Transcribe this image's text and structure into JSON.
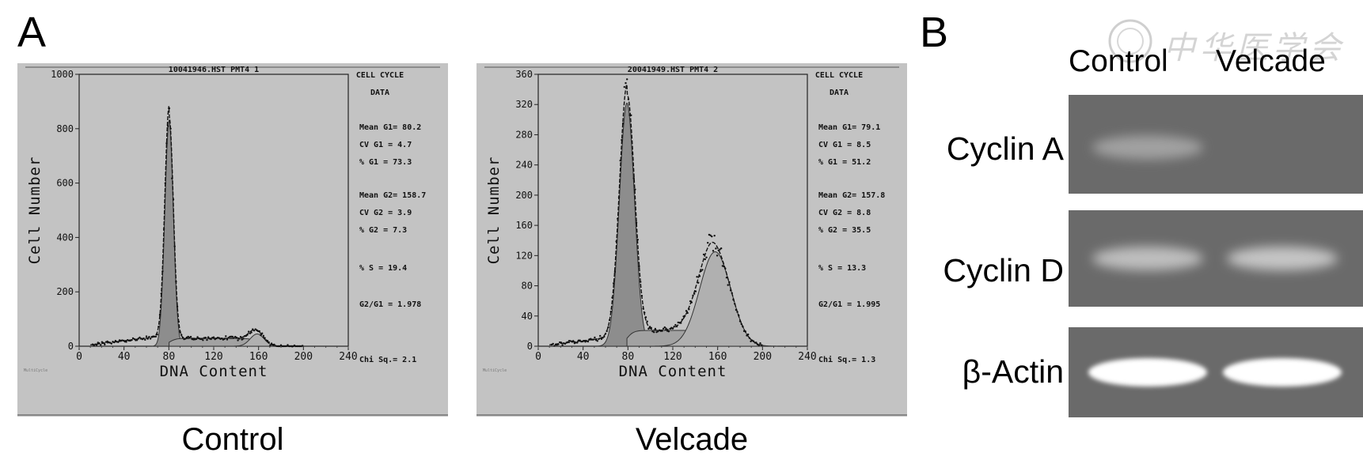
{
  "panels": {
    "a": "A",
    "b": "B"
  },
  "watermark": "中华医学会",
  "histograms": [
    {
      "title": "10041946.HST PMT4 1",
      "caption": "Control",
      "ylabel": "Cell Number",
      "xlabel": "DNA Content",
      "ylim": [
        0,
        1000
      ],
      "xlim": [
        0,
        240
      ],
      "yticks": [
        "0",
        "200",
        "400",
        "600",
        "800",
        "1000"
      ],
      "xticks": [
        "0",
        "40",
        "80",
        "120",
        "160",
        "200",
        "240"
      ],
      "side_header": [
        "CELL  CYCLE",
        "DATA"
      ],
      "stats": [
        {
          "label": "Mean G1=",
          "value": "80.2"
        },
        {
          "label": "CV G1  =",
          "value": "4.7"
        },
        {
          "label": "% G1   =",
          "value": "73.3"
        },
        {
          "label": "Mean G2=",
          "value": "158.7"
        },
        {
          "label": "CV G2  =",
          "value": "3.9"
        },
        {
          "label": "% G2   =",
          "value": "7.3"
        },
        {
          "label": "% S    =",
          "value": "19.4"
        },
        {
          "label": "G2/G1  =",
          "value": "1.978"
        },
        {
          "label": "Chi Sq.=",
          "value": "2.1"
        }
      ],
      "footer": "MultiCycle"
    },
    {
      "title": "20041949.HST PMT4 2",
      "caption": "Velcade",
      "ylabel": "Cell Number",
      "xlabel": "DNA Content",
      "ylim": [
        0,
        360
      ],
      "xlim": [
        0,
        240
      ],
      "yticks": [
        "0",
        "40",
        "80",
        "120",
        "160",
        "200",
        "240",
        "280",
        "320",
        "360"
      ],
      "xticks": [
        "0",
        "40",
        "80",
        "120",
        "160",
        "200",
        "240"
      ],
      "side_header": [
        "CELL  CYCLE",
        "DATA"
      ],
      "stats": [
        {
          "label": "Mean G1=",
          "value": "79.1"
        },
        {
          "label": "CV G1  =",
          "value": "8.5"
        },
        {
          "label": "% G1   =",
          "value": "51.2"
        },
        {
          "label": "Mean G2=",
          "value": "157.8"
        },
        {
          "label": "CV G2  =",
          "value": "8.8"
        },
        {
          "label": "% G2   =",
          "value": "35.5"
        },
        {
          "label": "% S    =",
          "value": "13.3"
        },
        {
          "label": "G2/G1  =",
          "value": "1.995"
        },
        {
          "label": "Chi Sq.=",
          "value": "1.3"
        }
      ],
      "footer": "MultiCycle"
    }
  ],
  "blot": {
    "columns": [
      "Control",
      "Velcade"
    ],
    "rows": [
      {
        "label": "Cyclin A",
        "bands": [
          0.35,
          0
        ]
      },
      {
        "label": "Cyclin D",
        "bands": [
          0.55,
          0.6
        ]
      },
      {
        "label": "β-Actin",
        "bands": [
          1,
          1
        ]
      }
    ]
  },
  "chart_data": [
    {
      "type": "area",
      "title": "10041946.HST PMT4 1",
      "xlabel": "DNA Content",
      "ylabel": "Cell Number",
      "xlim": [
        0,
        240
      ],
      "ylim": [
        0,
        1000
      ],
      "series": [
        {
          "name": "G1",
          "mean": 80.2,
          "cv": 4.7,
          "percent": 73.3,
          "peak": 830
        },
        {
          "name": "G2",
          "mean": 158.7,
          "cv": 3.9,
          "percent": 7.3,
          "peak": 45
        },
        {
          "name": "S",
          "percent": 19.4
        }
      ],
      "g2_g1": 1.978,
      "chi_sq": 2.1
    },
    {
      "type": "area",
      "title": "20041949.HST PMT4 2",
      "xlabel": "DNA Content",
      "ylabel": "Cell Number",
      "xlim": [
        0,
        240
      ],
      "ylim": [
        0,
        360
      ],
      "series": [
        {
          "name": "G1",
          "mean": 79.1,
          "cv": 8.5,
          "percent": 51.2,
          "peak": 322
        },
        {
          "name": "G2",
          "mean": 157.8,
          "cv": 8.8,
          "percent": 35.5,
          "peak": 125
        },
        {
          "name": "S",
          "percent": 13.3
        }
      ],
      "g2_g1": 1.995,
      "chi_sq": 1.3
    }
  ]
}
